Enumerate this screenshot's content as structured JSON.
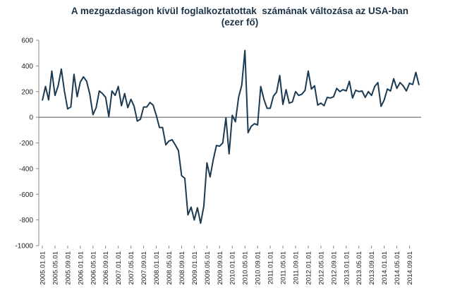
{
  "chart_data": {
    "type": "line",
    "title": "A mezgazdaságon kívül foglalkoztatottak  számának változása az USA-ban",
    "subtitle": "(ezer fő)",
    "xlabel": "",
    "ylabel": "",
    "ylim": [
      -1000,
      600
    ],
    "yticks": [
      "600",
      "400",
      "200",
      "0",
      "-200",
      "-400",
      "-600",
      "-800",
      "-1000"
    ],
    "grid": false,
    "legend": "none",
    "xticks": [
      "2005.01.01",
      "2005.05.01",
      "2005.09.01",
      "2006.01.01",
      "2006.05.01",
      "2006.09.01",
      "2007.01.01",
      "2007.05.01",
      "2007.09.01",
      "2008.01.01",
      "2008.05.01",
      "2008.09.01",
      "2009.01.01",
      "2009.05.01",
      "2009.09.01",
      "2010.01.01",
      "2010.05.01",
      "2010.09.01",
      "2011.01.01",
      "2011.05.01",
      "2011.09.01",
      "2012.01.01",
      "2012.05.01",
      "2012.09.01",
      "2013.01.01",
      "2013.05.01",
      "2013.09.01",
      "2014.01.01",
      "2014.05.01",
      "2014.09.01"
    ],
    "line_color": "#1b3a52",
    "series": [
      {
        "x_start": "2005.01",
        "values": [
          130,
          240,
          135,
          360,
          170,
          245,
          375,
          200,
          65,
          80,
          335,
          160,
          275,
          315,
          280,
          180,
          20,
          75,
          205,
          185,
          155,
          5,
          205,
          170,
          240,
          90,
          185,
          75,
          140,
          85,
          -30,
          -15,
          80,
          80,
          115,
          95,
          15,
          -80,
          -80,
          -215,
          -185,
          -175,
          -215,
          -260,
          -455,
          -475,
          -760,
          -700,
          -800,
          -705,
          -825,
          -695,
          -355,
          -465,
          -330,
          -220,
          -225,
          -200,
          -5,
          -285,
          15,
          -35,
          155,
          250,
          520,
          -120,
          -70,
          -50,
          -60,
          240,
          140,
          70,
          70,
          165,
          195,
          325,
          100,
          215,
          110,
          120,
          200,
          170,
          180,
          210,
          360,
          220,
          245,
          95,
          110,
          90,
          155,
          150,
          160,
          225,
          200,
          215,
          205,
          280,
          150,
          210,
          200,
          205,
          155,
          200,
          170,
          240,
          270,
          85,
          135,
          220,
          205,
          300,
          225,
          270,
          245,
          205,
          265,
          255,
          350,
          250
        ]
      }
    ]
  }
}
